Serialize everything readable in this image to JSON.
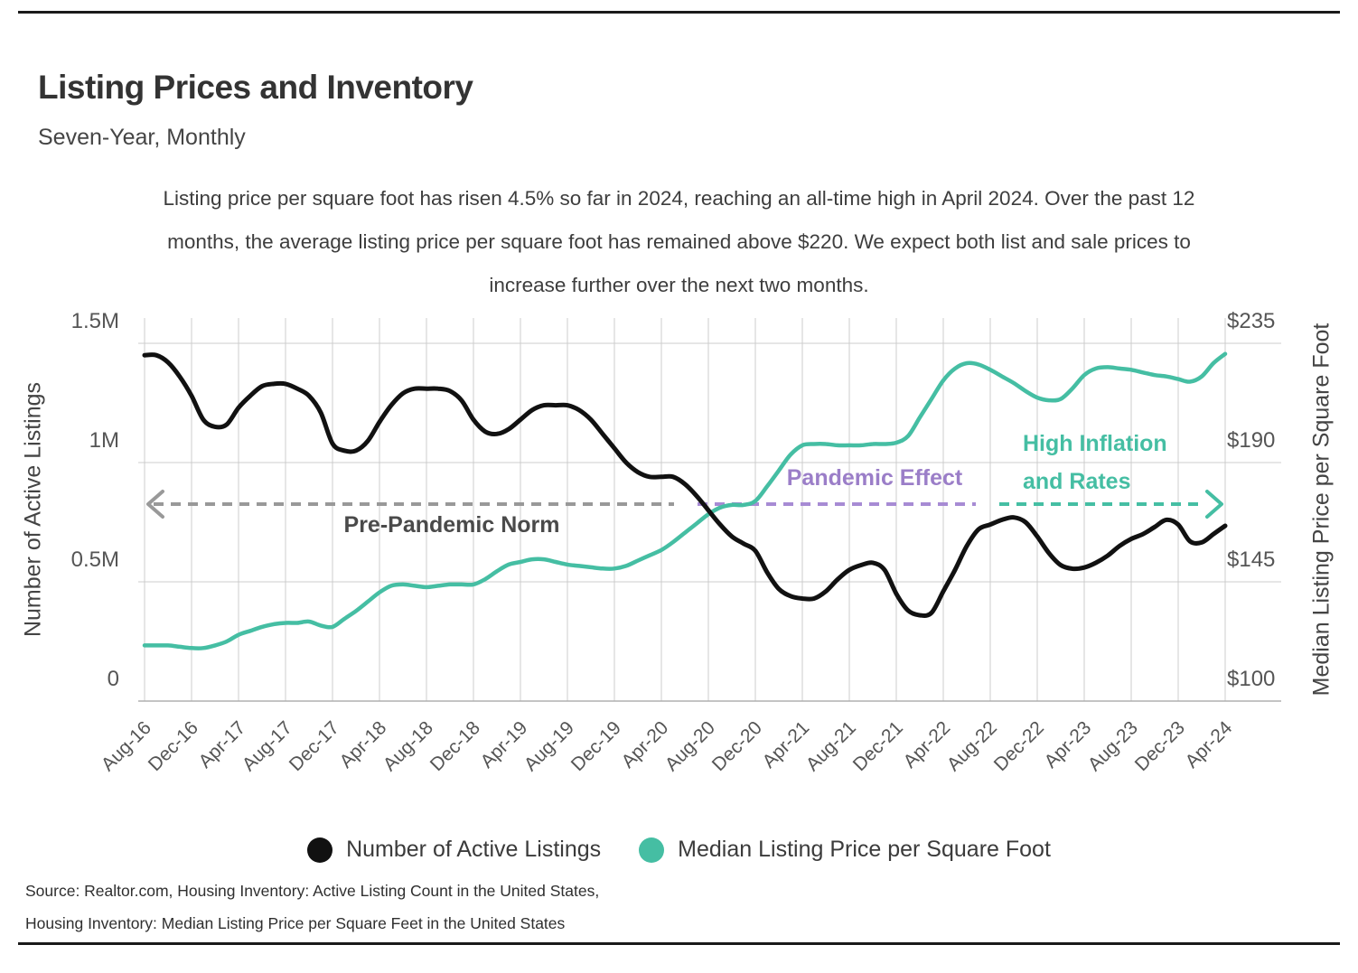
{
  "header": {
    "title": "Listing Prices and Inventory",
    "subtitle": "Seven-Year, Monthly"
  },
  "description_lines": [
    "Listing price per square foot has risen 4.5% so far in 2024, reaching an all-time high in April 2024. Over the past 12",
    "months, the average listing price per square foot has remained above $220. We expect both list and sale prices to",
    "increase further over the next two months."
  ],
  "chart_data": {
    "type": "line",
    "title": "Listing Prices and Inventory",
    "subtitle": "Seven-Year, Monthly",
    "x_tick_labels": [
      "Aug-16",
      "Dec-16",
      "Apr-17",
      "Aug-17",
      "Dec-17",
      "Apr-18",
      "Aug-18",
      "Dec-18",
      "Apr-19",
      "Aug-19",
      "Dec-19",
      "Apr-20",
      "Aug-20",
      "Dec-20",
      "Apr-21",
      "Aug-21",
      "Dec-21",
      "Apr-22",
      "Aug-22",
      "Dec-22",
      "Apr-23",
      "Aug-23",
      "Dec-23",
      "Apr-24"
    ],
    "x_frequency": "monthly",
    "grid": true,
    "left_axis": {
      "label": "Number of Active Listings",
      "tick_labels_top_to_bottom": [
        "1.5M",
        "1M",
        "0.5M",
        "0"
      ],
      "range": [
        0,
        1500000
      ]
    },
    "right_axis": {
      "label": "Median Listing Price per Square Foot",
      "tick_labels_top_to_bottom": [
        "$235",
        "$190",
        "$145",
        "$100"
      ],
      "range": [
        100,
        235
      ]
    },
    "series": [
      {
        "name": "Number of Active Listings",
        "axis": "left",
        "unit": "millions",
        "color": "#111111",
        "values": [
          1.45,
          1.45,
          1.42,
          1.36,
          1.28,
          1.18,
          1.15,
          1.16,
          1.23,
          1.28,
          1.32,
          1.33,
          1.33,
          1.31,
          1.28,
          1.21,
          1.08,
          1.05,
          1.05,
          1.09,
          1.17,
          1.24,
          1.29,
          1.31,
          1.31,
          1.31,
          1.3,
          1.26,
          1.18,
          1.13,
          1.12,
          1.14,
          1.18,
          1.22,
          1.24,
          1.24,
          1.24,
          1.22,
          1.18,
          1.12,
          1.06,
          1.0,
          0.96,
          0.94,
          0.94,
          0.94,
          0.91,
          0.86,
          0.8,
          0.74,
          0.69,
          0.66,
          0.63,
          0.54,
          0.47,
          0.44,
          0.43,
          0.43,
          0.46,
          0.51,
          0.55,
          0.57,
          0.58,
          0.55,
          0.45,
          0.38,
          0.36,
          0.37,
          0.46,
          0.55,
          0.65,
          0.72,
          0.74,
          0.76,
          0.77,
          0.75,
          0.69,
          0.62,
          0.57,
          0.555,
          0.56,
          0.58,
          0.61,
          0.65,
          0.68,
          0.7,
          0.73,
          0.76,
          0.74,
          0.67,
          0.665,
          0.7,
          0.735
        ]
      },
      {
        "name": "Median Listing Price per Square Foot",
        "axis": "right",
        "unit": "dollars_per_sqft",
        "color": "#45BEA3",
        "values": [
          121,
          121,
          121,
          120.5,
          120,
          120,
          121,
          122.5,
          125,
          126.5,
          128,
          129,
          129.5,
          129.5,
          130,
          128.5,
          128,
          131,
          134,
          137.5,
          141,
          143.5,
          144,
          143.5,
          143,
          143.5,
          144,
          144,
          144,
          146,
          149,
          151.5,
          152.5,
          153.5,
          153.5,
          152.5,
          151.5,
          151,
          150.5,
          150,
          150,
          151,
          153,
          155,
          157,
          160,
          163.5,
          167,
          170.5,
          173,
          174,
          174,
          175.5,
          181,
          187,
          193,
          196.5,
          197,
          197,
          196.5,
          196.5,
          196.5,
          197,
          197,
          197.5,
          200,
          207,
          214,
          221,
          225.5,
          227.5,
          227,
          225,
          222.5,
          220,
          217,
          214.5,
          213.5,
          214,
          218,
          223,
          225.5,
          226,
          225.5,
          225,
          224,
          223,
          222.5,
          221.5,
          220.5,
          222.5,
          227.5,
          231
        ]
      }
    ],
    "annotations": {
      "pre_pandemic": {
        "label": "Pre-Pandemic Norm",
        "text_color": "#4a4a4a",
        "line_color": "#999999",
        "arrow": "left"
      },
      "pandemic": {
        "label": "Pandemic Effect",
        "text_color": "#9B7EC8",
        "line_color": "#A78BD4",
        "arrow": "none"
      },
      "inflation": {
        "label_line1": "High Inflation",
        "label_line2": "and Rates",
        "text_color": "#45BEA3",
        "line_color": "#45BEA3",
        "arrow": "right"
      }
    },
    "legend_position": "bottom-center"
  },
  "legend": {
    "item1": "Number of Active Listings",
    "item2": "Median Listing Price per Square Foot"
  },
  "source": {
    "line1": "Source:  Realtor.com, Housing Inventory: Active Listing Count in the United States,",
    "line2": "Housing Inventory: Median Listing Price per Square Feet in the United States"
  },
  "colors": {
    "listings_line": "#111111",
    "price_line": "#45BEA3",
    "gridline": "#cccccc",
    "axis_line": "#b0b0b0"
  }
}
